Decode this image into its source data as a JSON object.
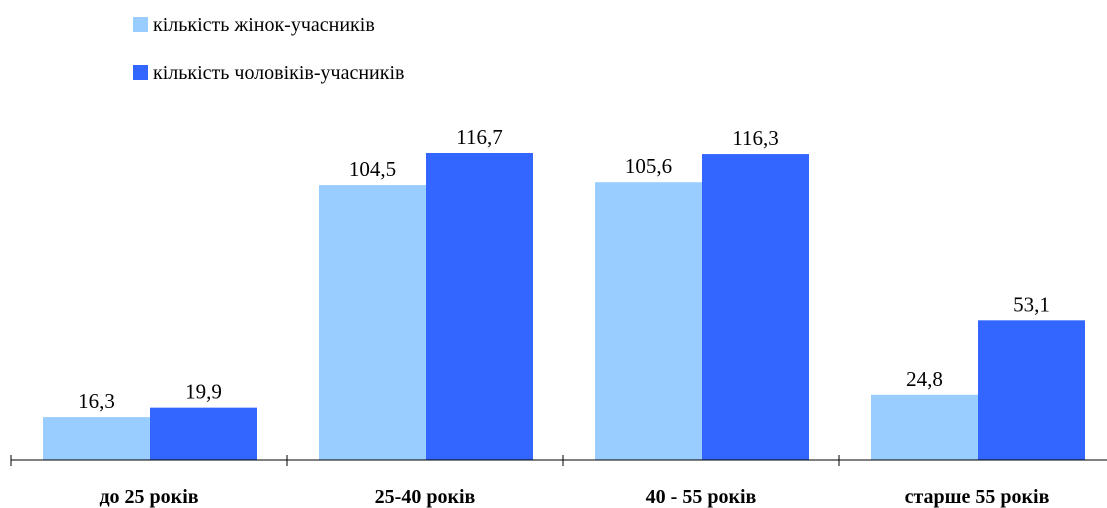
{
  "chart_data": {
    "type": "bar",
    "categories": [
      "до 25 років",
      "25-40 років",
      "40 - 55 років",
      "старше 55 років"
    ],
    "series": [
      {
        "name": "кількість жінок-учасників",
        "color": "#99ccff",
        "values": [
          16.3,
          104.5,
          105.6,
          24.8
        ],
        "labels": [
          "16,3",
          "104,5",
          "105,6",
          "24,8"
        ]
      },
      {
        "name": "кількість чоловіків-учасників",
        "color": "#3366ff",
        "values": [
          19.9,
          116.7,
          116.3,
          53.1
        ],
        "labels": [
          "19,9",
          "116,7",
          "116,3",
          "53,1"
        ]
      }
    ],
    "title": "",
    "xlabel": "",
    "ylabel": "",
    "ylim": [
      0,
      116.7
    ],
    "legend_position": "top-left",
    "grid": false
  }
}
